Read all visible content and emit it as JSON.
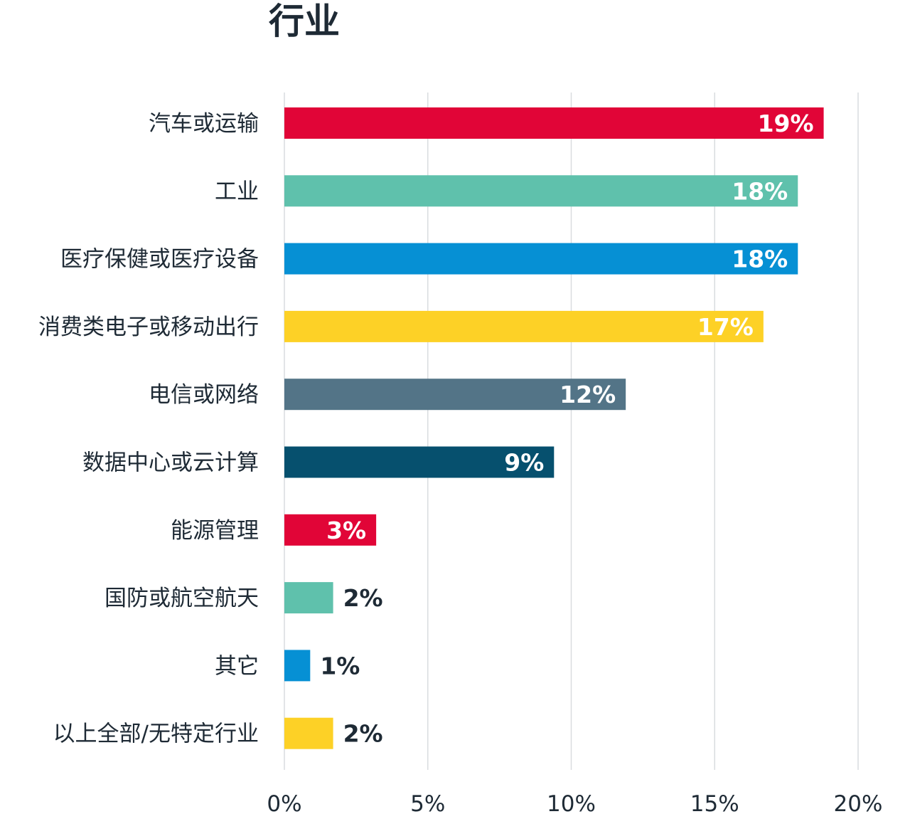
{
  "chart_data": {
    "type": "bar",
    "orientation": "horizontal",
    "title": "行业",
    "categories": [
      "汽车或运输",
      "工业",
      "医疗保健或医疗设备",
      "消费类电子或移动出行",
      "电信或网络",
      "数据中心或云计算",
      "能源管理",
      "国防或航空航天",
      "其它",
      "以上全部/无特定行业"
    ],
    "values": [
      18.8,
      17.9,
      17.9,
      16.7,
      11.9,
      9.4,
      3.2,
      1.7,
      0.9,
      1.7
    ],
    "value_labels": [
      "19%",
      "18%",
      "18%",
      "17%",
      "12%",
      "9%",
      "3%",
      "2%",
      "1%",
      "2%"
    ],
    "colors": [
      "#e10537",
      "#5fc1ac",
      "#0690d4",
      "#fdd126",
      "#537487",
      "#06506e",
      "#e10537",
      "#5fc1ac",
      "#0690d4",
      "#fdd126"
    ],
    "xlim": [
      0,
      20
    ],
    "xticks": [
      0,
      5,
      10,
      15,
      20
    ],
    "xtick_labels": [
      "0%",
      "5%",
      "10%",
      "15%",
      "20%"
    ],
    "grid": "vertical",
    "legend": "none"
  }
}
